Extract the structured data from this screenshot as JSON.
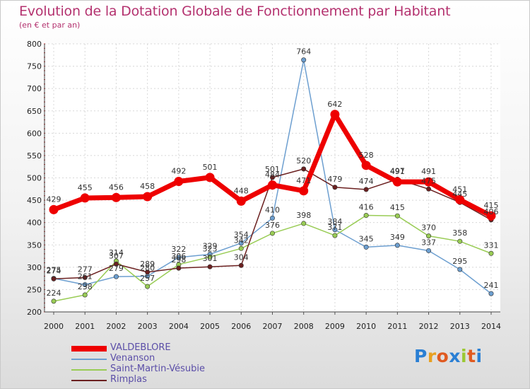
{
  "title": "Evolution de la Dotation Globale de Fonctionnement par Habitant",
  "subtitle": "(en € et par an)",
  "logo": {
    "text": "Proxiti"
  },
  "chart_data": {
    "type": "line",
    "title": "Evolution de la Dotation Globale de Fonctionnement par Habitant",
    "subtitle": "(en € et par an)",
    "x": [
      2000,
      2001,
      2002,
      2003,
      2004,
      2005,
      2006,
      2007,
      2008,
      2009,
      2010,
      2011,
      2012,
      2013,
      2014
    ],
    "ylim": [
      200,
      800
    ],
    "yticks": [
      200,
      250,
      300,
      350,
      400,
      450,
      500,
      550,
      600,
      650,
      700,
      750,
      800
    ],
    "grid": true,
    "legend_position": "bottom-left",
    "series": [
      {
        "name": "VALDEBLORE",
        "color": "#ee0000",
        "values": [
          429,
          455,
          456,
          458,
          492,
          501,
          448,
          484,
          471,
          642,
          528,
          491,
          491,
          451,
          415
        ]
      },
      {
        "name": "Venanson",
        "color": "#6d9fd0",
        "values": [
          275,
          261,
          279,
          280,
          322,
          329,
          354,
          410,
          764,
          384,
          345,
          349,
          337,
          295,
          241
        ]
      },
      {
        "name": "Saint-Martin-Vésubie",
        "color": "#99cc55",
        "values": [
          224,
          238,
          314,
          257,
          306,
          323,
          342,
          376,
          398,
          371,
          416,
          415,
          370,
          358,
          331
        ]
      },
      {
        "name": "Rimplas",
        "color": "#6b2020",
        "values": [
          274,
          277,
          307,
          289,
          298,
          301,
          304,
          501,
          520,
          479,
          474,
          497,
          475,
          445,
          406
        ]
      }
    ]
  }
}
